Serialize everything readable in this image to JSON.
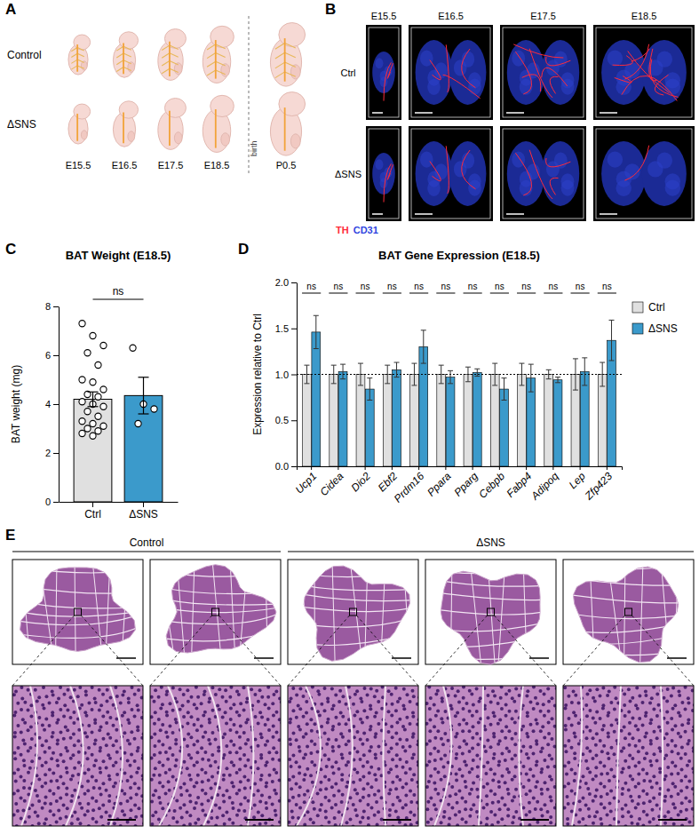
{
  "panels": {
    "A": {
      "letter": "A",
      "rows": [
        "Control",
        "ΔSNS"
      ],
      "stages": [
        "E15.5",
        "E16.5",
        "E17.5",
        "E18.5",
        "P0.5"
      ],
      "divider_label": "birth"
    },
    "B": {
      "letter": "B",
      "stages": [
        "E15.5",
        "E16.5",
        "E17.5",
        "E18.5"
      ],
      "rows": [
        "Ctrl",
        "ΔSNS"
      ],
      "stain_labels": [
        {
          "text": "TH",
          "color": "#ff2a3a"
        },
        {
          "text": "CD31",
          "color": "#2f45e0"
        }
      ]
    },
    "C": {
      "letter": "C"
    },
    "D": {
      "letter": "D"
    },
    "E": {
      "letter": "E",
      "groups": [
        {
          "label": "Control",
          "sections": 2
        },
        {
          "label": "ΔSNS",
          "sections": 3
        }
      ]
    }
  },
  "chart_data": [
    {
      "type": "bar",
      "title": "BAT Weight (E18.5)",
      "y_label": "BAT weight (mg)",
      "categories": [
        "Ctrl",
        "ΔSNS"
      ],
      "values": [
        4.2,
        4.35
      ],
      "errors": [
        0.3,
        0.75
      ],
      "points": [
        [
          7.3,
          6.8,
          6.4,
          6.1,
          5.6,
          5.0,
          4.9,
          4.6,
          4.4,
          4.3,
          4.1,
          4.0,
          3.9,
          3.7,
          3.5,
          3.3,
          3.2,
          3.1,
          3.0,
          2.9,
          2.8,
          2.7
        ],
        [
          6.3,
          4.0,
          3.8,
          3.2
        ]
      ],
      "colors": [
        "#e0e0e0",
        "#3b9acb"
      ],
      "ylim": [
        0,
        8
      ],
      "yticks": [
        0,
        2,
        4,
        6,
        8
      ],
      "annotations": [
        {
          "text": "ns",
          "between": [
            0,
            1
          ]
        }
      ]
    },
    {
      "type": "bar",
      "title": "BAT Gene Expression (E18.5)",
      "y_label": "Expression relative to Ctrl",
      "categories": [
        "Ucp1",
        "Cidea",
        "Dio2",
        "Ebf2",
        "Prdm16",
        "Ppara",
        "Pparg",
        "Cebpb",
        "Fabp4",
        "Adipoq",
        "Lep",
        "Zfp423"
      ],
      "series": [
        {
          "name": "Ctrl",
          "color": "#e0e0e0",
          "values": [
            1,
            1,
            1,
            1,
            1,
            1,
            1,
            1,
            1,
            1,
            1,
            1
          ],
          "errors": [
            0.1,
            0.1,
            0.12,
            0.1,
            0.12,
            0.1,
            0.08,
            0.12,
            0.12,
            0.05,
            0.17,
            0.13
          ]
        },
        {
          "name": "ΔSNS",
          "color": "#3b9acb",
          "values": [
            1.46,
            1.03,
            0.84,
            1.05,
            1.3,
            0.97,
            1.02,
            0.84,
            0.96,
            0.94,
            1.03,
            1.37
          ],
          "errors": [
            0.18,
            0.08,
            0.12,
            0.08,
            0.18,
            0.07,
            0.04,
            0.12,
            0.15,
            0.03,
            0.15,
            0.22
          ]
        }
      ],
      "ylim": [
        0,
        2
      ],
      "yticks": [
        {
          "value": 0,
          "label": "0.0"
        },
        {
          "value": 0.5,
          "label": "0.5"
        },
        {
          "value": 1,
          "label": "1.0"
        },
        {
          "value": 1.5,
          "label": "1.5"
        },
        {
          "value": 2,
          "label": "2.0"
        }
      ],
      "reference_line": 1,
      "annotations": [
        "ns",
        "ns",
        "ns",
        "ns",
        "ns",
        "ns",
        "ns",
        "ns",
        "ns",
        "ns",
        "ns",
        "ns"
      ],
      "legend": "right"
    }
  ]
}
